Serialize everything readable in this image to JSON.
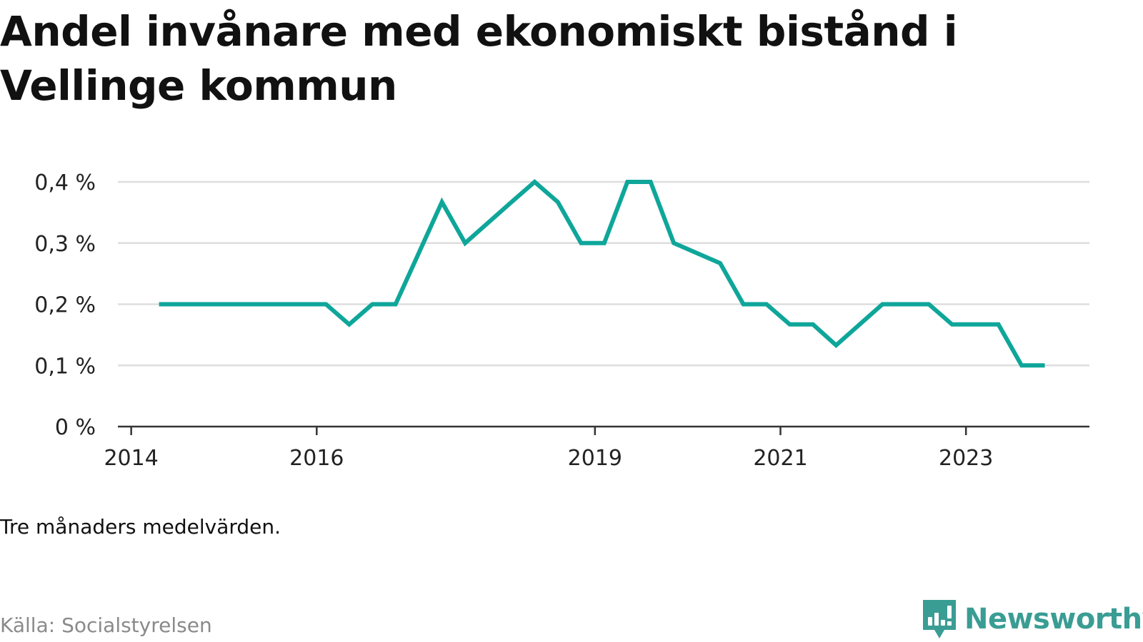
{
  "title": "Andel invånare med ekonomiskt bistånd i Vellinge kommun",
  "note": "Tre månaders medelvärden.",
  "source": "Källa: Socialstyrelsen",
  "brand": {
    "name": "Newsworthy",
    "icon": "bar-chart-speech-bubble-icon"
  },
  "colors": {
    "line": "#0fa69a",
    "grid": "#dddddd",
    "axis": "#333333",
    "brand": "#3a9d94"
  },
  "chart_data": {
    "type": "line",
    "title": "Andel invånare med ekonomiskt bistånd i Vellinge kommun",
    "xlabel": "",
    "ylabel": "",
    "ylim": [
      0,
      0.4
    ],
    "yticks": [
      0,
      0.1,
      0.2,
      0.3,
      0.4
    ],
    "ytick_labels": [
      "0 %",
      "0,1 %",
      "0,2 %",
      "0,3 %",
      "0,4 %"
    ],
    "xticks": [
      2014,
      2016,
      2019,
      2021,
      2023
    ],
    "xtick_labels": [
      "2014",
      "2016",
      "2019",
      "2021",
      "2023"
    ],
    "grid": "horizontal",
    "legend": "none",
    "series": [
      {
        "x": [
          2014.3,
          2016.1,
          2016.35,
          2016.6,
          2016.85,
          2017.35,
          2017.6,
          2018.1,
          2018.35,
          2018.6,
          2018.85,
          2019.1,
          2019.35,
          2019.6,
          2019.85,
          2020.35,
          2020.6,
          2020.85,
          2021.1,
          2021.35,
          2021.6,
          2022.1,
          2022.35,
          2022.6,
          2022.85,
          2023.1,
          2023.35,
          2023.6,
          2023.85
        ],
        "values": [
          0.2,
          0.2,
          0.167,
          0.2,
          0.2,
          0.367,
          0.3,
          0.367,
          0.4,
          0.367,
          0.3,
          0.3,
          0.4,
          0.4,
          0.3,
          0.267,
          0.2,
          0.2,
          0.167,
          0.167,
          0.133,
          0.2,
          0.2,
          0.2,
          0.167,
          0.167,
          0.167,
          0.1,
          0.1
        ]
      }
    ]
  }
}
